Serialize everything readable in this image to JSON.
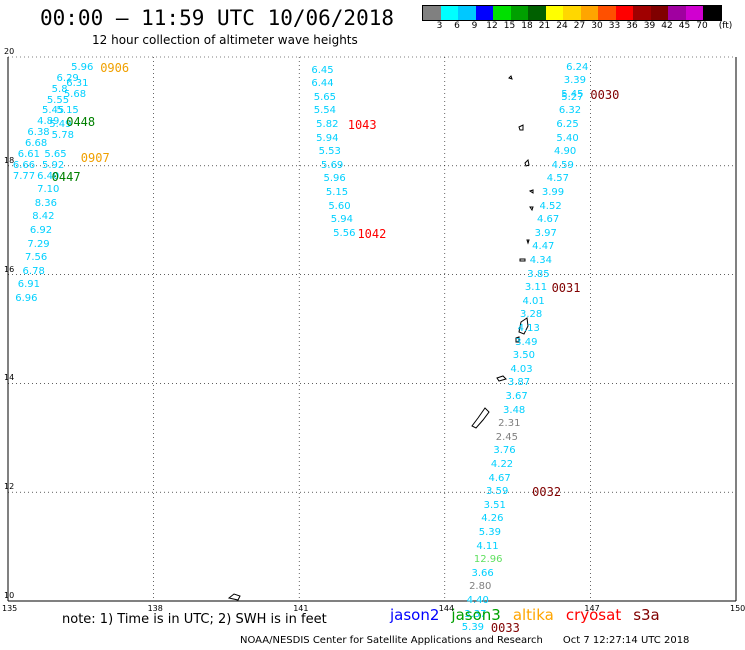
{
  "header": {
    "title": "00:00 — 11:59 UTC 10/06/2018",
    "subtitle": "12 hour collection of altimeter wave heights"
  },
  "scale": {
    "unit": "(ft)",
    "labels": [
      "3",
      "6",
      "9",
      "12",
      "15",
      "18",
      "21",
      "24",
      "27",
      "30",
      "33",
      "36",
      "39",
      "42",
      "45",
      "70"
    ],
    "colors": [
      "#808080",
      "#00ffff",
      "#00c8ff",
      "#0000ff",
      "#00e000",
      "#00a000",
      "#006000",
      "#ffff00",
      "#ffd700",
      "#ffa500",
      "#ff5000",
      "#ff0000",
      "#a00000",
      "#800000",
      "#a000a0",
      "#d000d0",
      "#000000"
    ]
  },
  "chart_data": {
    "type": "scatter",
    "xlabels": [
      "135",
      "138",
      "141",
      "144",
      "147",
      "150"
    ],
    "ylabels": [
      "20",
      "18",
      "16",
      "14",
      "12",
      "10"
    ],
    "xlim": [
      135,
      150
    ],
    "ylim": [
      10,
      20
    ],
    "grid": true,
    "series": [
      {
        "name": "jason3",
        "color": "#00d0ff",
        "points": [
          {
            "lon": 136.3,
            "lat": 19.8,
            "v": "5.96"
          },
          {
            "lon": 136.0,
            "lat": 19.6,
            "v": "6.29"
          },
          {
            "lon": 136.2,
            "lat": 19.5,
            "v": "6.31"
          },
          {
            "lon": 135.9,
            "lat": 19.4,
            "v": "5.8"
          },
          {
            "lon": 136.15,
            "lat": 19.3,
            "v": "5.68"
          },
          {
            "lon": 135.8,
            "lat": 19.2,
            "v": "5.55"
          },
          {
            "lon": 135.7,
            "lat": 19.0,
            "v": "5.45"
          },
          {
            "lon": 136.0,
            "lat": 19.0,
            "v": "5.15"
          },
          {
            "lon": 135.6,
            "lat": 18.8,
            "v": "4.89"
          },
          {
            "lon": 135.85,
            "lat": 18.75,
            "v": "5.49"
          },
          {
            "lon": 135.4,
            "lat": 18.6,
            "v": "6.38"
          },
          {
            "lon": 135.9,
            "lat": 18.55,
            "v": "5.78"
          },
          {
            "lon": 135.35,
            "lat": 18.4,
            "v": "6.68"
          },
          {
            "lon": 135.2,
            "lat": 18.2,
            "v": "6.61"
          },
          {
            "lon": 135.75,
            "lat": 18.2,
            "v": "5.65"
          },
          {
            "lon": 135.1,
            "lat": 18.0,
            "v": "6.66"
          },
          {
            "lon": 135.7,
            "lat": 18.0,
            "v": "5.92"
          },
          {
            "lon": 135.1,
            "lat": 17.8,
            "v": "7.77"
          },
          {
            "lon": 135.6,
            "lat": 17.8,
            "v": "6.40"
          },
          {
            "lon": 135.6,
            "lat": 17.55,
            "v": "7.10"
          },
          {
            "lon": 135.55,
            "lat": 17.3,
            "v": "8.36"
          },
          {
            "lon": 135.5,
            "lat": 17.05,
            "v": "8.42"
          },
          {
            "lon": 135.45,
            "lat": 16.8,
            "v": "6.92"
          },
          {
            "lon": 135.4,
            "lat": 16.55,
            "v": "7.29"
          },
          {
            "lon": 135.35,
            "lat": 16.3,
            "v": "7.56"
          },
          {
            "lon": 135.3,
            "lat": 16.05,
            "v": "6.78"
          },
          {
            "lon": 135.2,
            "lat": 15.8,
            "v": "6.91"
          },
          {
            "lon": 135.15,
            "lat": 15.55,
            "v": "6.96"
          },
          {
            "lon": 141.25,
            "lat": 19.75,
            "v": "6.45"
          },
          {
            "lon": 141.25,
            "lat": 19.5,
            "v": "6.44"
          },
          {
            "lon": 141.3,
            "lat": 19.25,
            "v": "5.65"
          },
          {
            "lon": 141.3,
            "lat": 19.0,
            "v": "5.54"
          },
          {
            "lon": 141.35,
            "lat": 18.75,
            "v": "5.82"
          },
          {
            "lon": 141.35,
            "lat": 18.5,
            "v": "5.94"
          },
          {
            "lon": 141.4,
            "lat": 18.25,
            "v": "5.53"
          },
          {
            "lon": 141.45,
            "lat": 18.0,
            "v": "5.69"
          },
          {
            "lon": 141.5,
            "lat": 17.75,
            "v": "5.96"
          },
          {
            "lon": 141.55,
            "lat": 17.5,
            "v": "5.15"
          },
          {
            "lon": 141.6,
            "lat": 17.25,
            "v": "5.60"
          },
          {
            "lon": 141.65,
            "lat": 17.0,
            "v": "5.94"
          },
          {
            "lon": 141.7,
            "lat": 16.75,
            "v": "5.56"
          },
          {
            "lon": 146.5,
            "lat": 19.8,
            "v": "6.24"
          },
          {
            "lon": 146.45,
            "lat": 19.55,
            "v": "3.39"
          },
          {
            "lon": 146.4,
            "lat": 19.3,
            "v": "5.45"
          },
          {
            "lon": 146.4,
            "lat": 19.25,
            "v": "5.27"
          },
          {
            "lon": 146.35,
            "lat": 19.0,
            "v": "6.32"
          },
          {
            "lon": 146.3,
            "lat": 18.75,
            "v": "6.25"
          },
          {
            "lon": 146.3,
            "lat": 18.5,
            "v": "5.40"
          },
          {
            "lon": 146.25,
            "lat": 18.25,
            "v": "4.90"
          },
          {
            "lon": 146.2,
            "lat": 18.0,
            "v": "4.59"
          },
          {
            "lon": 146.1,
            "lat": 17.75,
            "v": "4.57"
          },
          {
            "lon": 146.0,
            "lat": 17.5,
            "v": "3.99"
          },
          {
            "lon": 145.95,
            "lat": 17.25,
            "v": "4.52"
          },
          {
            "lon": 145.9,
            "lat": 17.0,
            "v": "4.67"
          },
          {
            "lon": 145.85,
            "lat": 16.75,
            "v": "3.97"
          },
          {
            "lon": 145.8,
            "lat": 16.5,
            "v": "4.47"
          },
          {
            "lon": 145.75,
            "lat": 16.25,
            "v": "4.34"
          },
          {
            "lon": 145.7,
            "lat": 16.0,
            "v": "3.85"
          },
          {
            "lon": 145.65,
            "lat": 15.75,
            "v": "3.11"
          },
          {
            "lon": 145.6,
            "lat": 15.5,
            "v": "4.01"
          },
          {
            "lon": 145.55,
            "lat": 15.25,
            "v": "3.28"
          },
          {
            "lon": 145.5,
            "lat": 15.0,
            "v": "4.13"
          },
          {
            "lon": 145.45,
            "lat": 14.75,
            "v": "3.49"
          },
          {
            "lon": 145.4,
            "lat": 14.5,
            "v": "3.50"
          },
          {
            "lon": 145.35,
            "lat": 14.25,
            "v": "4.03"
          },
          {
            "lon": 145.3,
            "lat": 14.0,
            "v": "3.87"
          },
          {
            "lon": 145.25,
            "lat": 13.75,
            "v": "3.67"
          },
          {
            "lon": 145.2,
            "lat": 13.5,
            "v": "3.48"
          },
          {
            "lon": 145.0,
            "lat": 12.75,
            "v": "3.76"
          },
          {
            "lon": 144.95,
            "lat": 12.5,
            "v": "4.22"
          },
          {
            "lon": 144.9,
            "lat": 12.25,
            "v": "4.67"
          },
          {
            "lon": 144.85,
            "lat": 12.0,
            "v": "3.59"
          },
          {
            "lon": 144.8,
            "lat": 11.75,
            "v": "3.51"
          },
          {
            "lon": 144.75,
            "lat": 11.5,
            "v": "4.26"
          },
          {
            "lon": 144.7,
            "lat": 11.25,
            "v": "5.39"
          },
          {
            "lon": 144.65,
            "lat": 11.0,
            "v": "4.11"
          },
          {
            "lon": 144.55,
            "lat": 10.5,
            "v": "3.66"
          },
          {
            "lon": 144.45,
            "lat": 10.0,
            "v": "4.40"
          },
          {
            "lon": 144.4,
            "lat": 9.75,
            "v": "3.37"
          },
          {
            "lon": 144.35,
            "lat": 9.5,
            "v": "5.39"
          }
        ]
      },
      {
        "name": "jason3-grey",
        "color": "#808080",
        "points": [
          {
            "lon": 145.1,
            "lat": 13.25,
            "v": "2.31"
          },
          {
            "lon": 145.05,
            "lat": 13.0,
            "v": "2.45"
          },
          {
            "lon": 144.5,
            "lat": 10.25,
            "v": "2.80"
          }
        ]
      },
      {
        "name": "jason3-green",
        "color": "#60e060",
        "points": [
          {
            "lon": 144.6,
            "lat": 10.75,
            "v": "12.96"
          }
        ]
      }
    ],
    "time_labels": [
      {
        "lon": 136.9,
        "lat": 19.8,
        "v": "0906",
        "color": "#f0a000"
      },
      {
        "lon": 136.2,
        "lat": 18.8,
        "v": "0448",
        "color": "#008000"
      },
      {
        "lon": 136.5,
        "lat": 18.15,
        "v": "0907",
        "color": "#f0a000"
      },
      {
        "lon": 135.9,
        "lat": 17.8,
        "v": "0447",
        "color": "#008000"
      },
      {
        "lon": 142.0,
        "lat": 18.75,
        "v": "1043",
        "color": "#ff0000"
      },
      {
        "lon": 142.2,
        "lat": 16.75,
        "v": "1042",
        "color": "#ff0000"
      },
      {
        "lon": 147.0,
        "lat": 19.3,
        "v": "0030",
        "color": "#800000"
      },
      {
        "lon": 146.2,
        "lat": 15.75,
        "v": "0031",
        "color": "#800000"
      },
      {
        "lon": 145.8,
        "lat": 12.0,
        "v": "0032",
        "color": "#800000"
      },
      {
        "lon": 144.95,
        "lat": 9.5,
        "v": "0033",
        "color": "#800000"
      }
    ]
  },
  "footer": {
    "note": "note:  1) Time is in UTC; 2) SWH is in feet",
    "legend": [
      {
        "label": "jason2",
        "color": "#0000ff"
      },
      {
        "label": "jason3",
        "color": "#00a000"
      },
      {
        "label": "altika",
        "color": "#ffa500"
      },
      {
        "label": "cryosat",
        "color": "#ff0000"
      },
      {
        "label": "s3a",
        "color": "#800000"
      }
    ],
    "credit": "NOAA/NESDIS Center for Satellite Applications and Research",
    "timestamp": "Oct  7 12:27:14 UTC 2018"
  }
}
